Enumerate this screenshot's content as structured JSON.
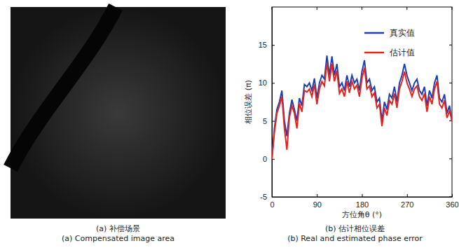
{
  "chart_data": [
    {
      "type": "image",
      "title": "(a) 补偿场景",
      "subtitle": "(a) Compensated image area"
    },
    {
      "type": "line",
      "title": "(b) 估计相位误差",
      "subtitle": "(b) Real and estimated phase error",
      "x_label": "方位角θ (°)",
      "y_label": "相位误差 (π)",
      "x": [
        0,
        5,
        10,
        15,
        20,
        25,
        30,
        35,
        40,
        45,
        50,
        55,
        60,
        65,
        70,
        75,
        80,
        85,
        90,
        95,
        100,
        105,
        110,
        115,
        120,
        125,
        130,
        135,
        140,
        145,
        150,
        155,
        160,
        165,
        170,
        175,
        180,
        185,
        190,
        195,
        200,
        205,
        210,
        215,
        220,
        225,
        230,
        235,
        240,
        245,
        250,
        255,
        260,
        265,
        270,
        275,
        280,
        285,
        290,
        295,
        300,
        305,
        310,
        315,
        320,
        325,
        330,
        335,
        340,
        345,
        350,
        355,
        360
      ],
      "series": [
        {
          "name": "真实值",
          "color": "#1f3fb4",
          "values": [
            0,
            4,
            6.5,
            7.5,
            9,
            5,
            3,
            6,
            7.8,
            6.5,
            5,
            8,
            7,
            9.8,
            9.5,
            10,
            9,
            10.6,
            8,
            10,
            11,
            10.5,
            13.6,
            11,
            13.5,
            11,
            12.5,
            9.5,
            10,
            9,
            11,
            9.5,
            11,
            10,
            10.5,
            9,
            11.5,
            13,
            10,
            10.5,
            9,
            9.5,
            7.5,
            8,
            5,
            7.5,
            6.5,
            8.5,
            8,
            9.5,
            7.5,
            10,
            11,
            12.5,
            11,
            10,
            9,
            10,
            10.5,
            9,
            8.5,
            9.5,
            7,
            9,
            8,
            10,
            11,
            8,
            7.5,
            8.5,
            6,
            7,
            5
          ]
        },
        {
          "name": "估计值",
          "color": "#e8231c",
          "values": [
            0,
            3.5,
            6,
            7,
            8.2,
            4,
            1.2,
            5.5,
            7,
            6,
            4,
            7.3,
            6.2,
            9,
            8.8,
            9.2,
            8.2,
            9.8,
            7.2,
            9.2,
            10.2,
            9.6,
            12.6,
            10.2,
            12.5,
            10.2,
            11.6,
            8.6,
            9.2,
            8.2,
            10.2,
            8.7,
            10.2,
            9.2,
            9.7,
            8.2,
            10.6,
            12,
            9.2,
            9.6,
            8.2,
            8.7,
            6.7,
            7.2,
            4.3,
            6.7,
            5.7,
            7.7,
            7.2,
            8.6,
            6.7,
            9.2,
            10.2,
            11.5,
            10,
            9.2,
            8.2,
            9.2,
            9.6,
            8.2,
            7.7,
            8.6,
            6.2,
            8.2,
            7.2,
            9.2,
            10.2,
            7.2,
            6.7,
            7.7,
            5.4,
            6.3,
            5
          ]
        }
      ],
      "xlim": [
        0,
        360
      ],
      "xticks": [
        0,
        90,
        180,
        270,
        360
      ],
      "ylim": [
        -5,
        20
      ],
      "yticks": [
        -5,
        0,
        5,
        10,
        15
      ],
      "grid": false,
      "legend": "top-right"
    }
  ]
}
